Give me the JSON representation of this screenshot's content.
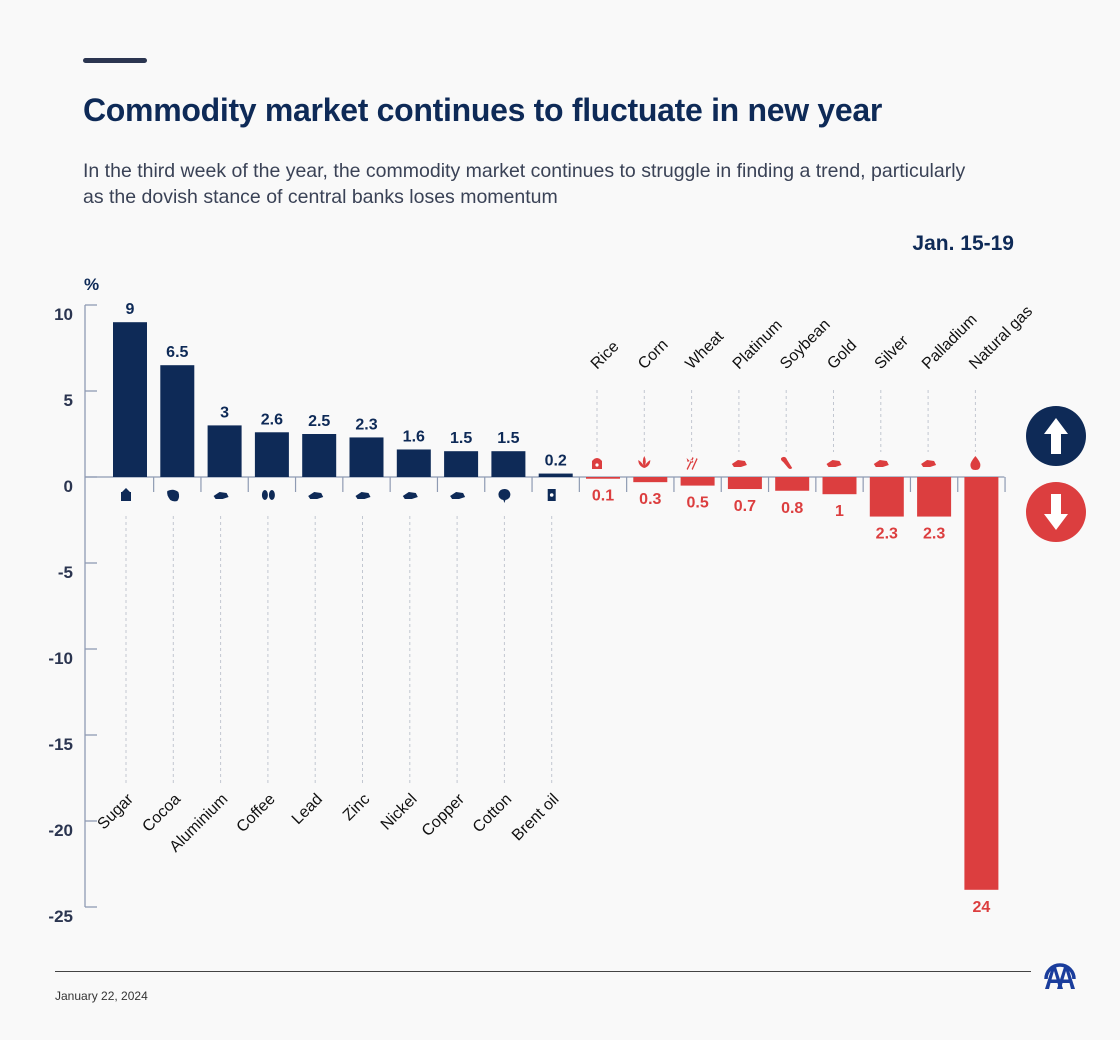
{
  "header": {
    "title": "Commodity market continues to fluctuate in new year",
    "subtitle": "In the third week of the year, the commodity market continues to struggle in finding a trend, particularly as the dovish stance of central banks loses momentum",
    "date_range": "Jan. 15-19"
  },
  "footer": {
    "date": "January 22, 2024",
    "logo": "anadolu-agency-logo"
  },
  "legend": {
    "up_icon": "arrow-up-circle",
    "down_icon": "arrow-down-circle"
  },
  "colors": {
    "positive": "#0e2a57",
    "negative": "#dc3e3f",
    "axis": "#8f9bb3",
    "text": "#0e2a57"
  },
  "chart_data": {
    "type": "bar",
    "title": "Commodity market continues to fluctuate in new year",
    "subtitle": "Jan. 15-19",
    "ylabel": "%",
    "xlabel": "",
    "ylim": [
      -25,
      10
    ],
    "yticks": [
      10,
      5,
      0,
      -5,
      -10,
      -15,
      -20,
      -25
    ],
    "grid": false,
    "categories": [
      "Sugar",
      "Cocoa",
      "Aluminium",
      "Coffee",
      "Lead",
      "Zinc",
      "Nickel",
      "Copper",
      "Cotton",
      "Brent oil",
      "Rice",
      "Corn",
      "Wheat",
      "Platinum",
      "Soybean",
      "Gold",
      "Silver",
      "Palladium",
      "Natural gas"
    ],
    "values": [
      9,
      6.5,
      3,
      2.6,
      2.5,
      2.3,
      1.6,
      1.5,
      1.5,
      0.2,
      -0.1,
      -0.3,
      -0.5,
      -0.7,
      -0.8,
      -1,
      -2.3,
      -2.3,
      -24
    ],
    "data_labels": [
      "9",
      "6.5",
      "3",
      "2.6",
      "2.5",
      "2.3",
      "1.6",
      "1.5",
      "1.5",
      "0.2",
      "0.1",
      "0.3",
      "0.5",
      "0.7",
      "0.8",
      "1",
      "2.3",
      "2.3",
      "24"
    ],
    "icons": [
      "sugar-sack-icon",
      "cocoa-pod-icon",
      "metal-bars-icon",
      "coffee-beans-icon",
      "metal-bars-icon",
      "metal-bars-icon",
      "metal-bars-icon",
      "metal-bars-icon",
      "cotton-boll-icon",
      "oil-barrel-icon",
      "rice-sack-icon",
      "corn-plant-icon",
      "wheat-icon",
      "metal-bars-icon",
      "soybean-pod-icon",
      "metal-bars-icon",
      "metal-bars-icon",
      "metal-bars-icon",
      "gas-flame-icon"
    ]
  }
}
